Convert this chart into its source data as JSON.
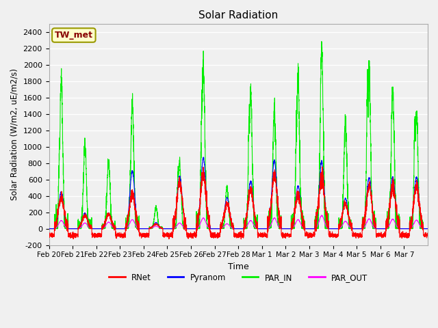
{
  "title": "Solar Radiation",
  "ylabel": "Solar Radiation (W/m2, uE/m2/s)",
  "xlabel": "Time",
  "ylim": [
    -200,
    2500
  ],
  "yticks": [
    -200,
    0,
    200,
    400,
    600,
    800,
    1000,
    1200,
    1400,
    1600,
    1800,
    2000,
    2200,
    2400
  ],
  "bg_color": "#f0f0f0",
  "grid_color": "#ffffff",
  "station_label": "TW_met",
  "station_label_color": "#880000",
  "station_box_facecolor": "#ffffcc",
  "station_box_edgecolor": "#999900",
  "line_colors": {
    "RNet": "#ff0000",
    "Pyranom": "#0000ff",
    "PAR_IN": "#00ee00",
    "PAR_OUT": "#ff00ff"
  },
  "line_widths": {
    "RNet": 0.8,
    "Pyranom": 0.8,
    "PAR_IN": 0.8,
    "PAR_OUT": 0.8
  },
  "num_days": 16,
  "points_per_day": 288,
  "date_labels": [
    "Feb 20",
    "Feb 21",
    "Feb 22",
    "Feb 23",
    "Feb 24",
    "Feb 25",
    "Feb 26",
    "Feb 27",
    "Feb 28",
    "Mar 1",
    "Mar 2",
    "Mar 3",
    "Mar 4",
    "Mar 5",
    "Mar 6",
    "Mar 7"
  ],
  "par_in_peaks": [
    1800,
    1040,
    830,
    1550,
    260,
    800,
    1990,
    500,
    1670,
    1460,
    1850,
    2220,
    1340,
    1930,
    1720,
    1420
  ],
  "par_in_secondary": [
    1040,
    450,
    0,
    0,
    0,
    700,
    1490,
    0,
    1330,
    0,
    1250,
    0,
    0,
    1860,
    0,
    1310
  ],
  "pyranom_peaks": [
    450,
    190,
    190,
    700,
    75,
    640,
    860,
    380,
    580,
    830,
    520,
    820,
    370,
    620,
    630,
    630
  ],
  "rnet_peaks": [
    380,
    160,
    170,
    430,
    55,
    560,
    660,
    310,
    470,
    640,
    420,
    640,
    300,
    510,
    510,
    510
  ],
  "par_out_peaks": [
    100,
    70,
    80,
    110,
    30,
    70,
    130,
    60,
    100,
    130,
    110,
    160,
    90,
    120,
    115,
    105
  ],
  "rnet_night": -80,
  "figsize": [
    6.4,
    4.8
  ],
  "dpi": 100
}
